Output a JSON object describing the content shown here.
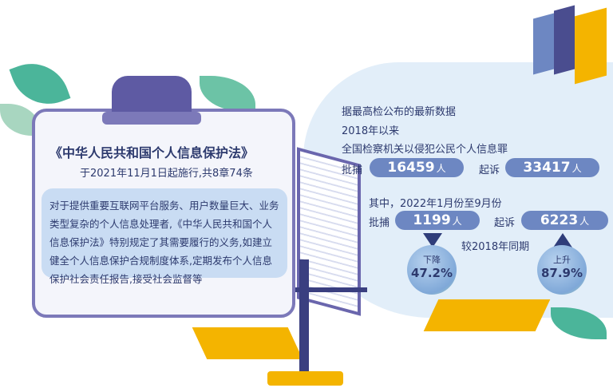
{
  "card": {
    "title": "《中华人民共和国个人信息保护法》",
    "subtitle": "于2021年11月1日起施行,共8章74条",
    "body": "对于提供重要互联网平台服务、用户数量巨大、业务类型复杂的个人信息处理者,《中华人民共和国个人信息保护法》特别规定了其需要履行的义务,如建立健全个人信息保护合规制度体系,定期发布个人信息保护社会责任报告,接受社会监督等"
  },
  "stats": {
    "intro": [
      "据最高检公布的最新数据",
      "2018年以来",
      "全国检察机关以侵犯公民个人信息罪"
    ],
    "total": {
      "arrest_label": "批捕",
      "arrest_value": "16459",
      "prosecute_label": "起诉",
      "prosecute_value": "33417",
      "unit": "人"
    },
    "period": "其中，2022年1月份至9月份",
    "recent": {
      "arrest_label": "批捕",
      "arrest_value": "1199",
      "prosecute_label": "起诉",
      "prosecute_value": "6223",
      "unit": "人"
    },
    "compare": "较2018年同期",
    "down": {
      "label": "下降",
      "value": "47.2%",
      "icon": "triangle-down-icon"
    },
    "up": {
      "label": "上升",
      "value": "87.9%",
      "icon": "triangle-up-icon"
    }
  },
  "colors": {
    "accent": "#6d87c2",
    "navy": "#2d3a6e",
    "panel": "#e2eef9",
    "card_border": "#7c79b9"
  }
}
